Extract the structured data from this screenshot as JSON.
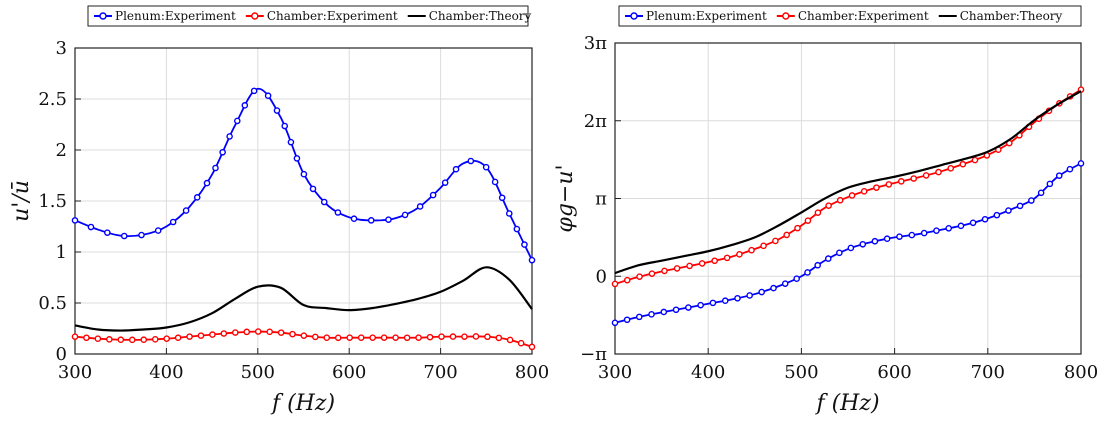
{
  "chart_data": [
    {
      "type": "line",
      "xlabel": "f (Hz)",
      "ylabel": "u'/ū",
      "xlim": [
        300,
        800
      ],
      "ylim": [
        0,
        3
      ],
      "xticks": [
        "300",
        "400",
        "500",
        "600",
        "700",
        "800"
      ],
      "yticks": [
        "0",
        "0.5",
        "1",
        "1.5",
        "2",
        "2.5",
        "3"
      ],
      "grid": true,
      "legend_position": "top (above plot)",
      "x": [
        300,
        325,
        350,
        375,
        400,
        425,
        450,
        475,
        500,
        525,
        550,
        575,
        600,
        625,
        650,
        675,
        700,
        725,
        750,
        775,
        800
      ],
      "series": [
        {
          "name": "Plenum:Experiment",
          "color": "#0000ff",
          "marker": "circle",
          "values": [
            1.31,
            1.22,
            1.16,
            1.17,
            1.25,
            1.44,
            1.76,
            2.24,
            2.6,
            2.32,
            1.77,
            1.47,
            1.34,
            1.31,
            1.33,
            1.43,
            1.63,
            1.87,
            1.83,
            1.38,
            0.92
          ]
        },
        {
          "name": "Chamber:Experiment",
          "color": "#ff0000",
          "marker": "circle",
          "values": [
            0.17,
            0.15,
            0.14,
            0.14,
            0.15,
            0.17,
            0.19,
            0.21,
            0.22,
            0.21,
            0.18,
            0.16,
            0.16,
            0.16,
            0.16,
            0.16,
            0.17,
            0.17,
            0.17,
            0.14,
            0.07
          ]
        },
        {
          "name": "Chamber:Theory",
          "color": "#000000",
          "marker": "none",
          "values": [
            0.28,
            0.24,
            0.23,
            0.24,
            0.26,
            0.31,
            0.4,
            0.54,
            0.66,
            0.65,
            0.48,
            0.45,
            0.43,
            0.45,
            0.49,
            0.54,
            0.61,
            0.72,
            0.85,
            0.73,
            0.44
          ]
        }
      ]
    },
    {
      "type": "line",
      "xlabel": "f (Hz)",
      "ylabel": "φg−u'",
      "xlim": [
        300,
        800
      ],
      "ylim": [
        -3.1416,
        9.4248
      ],
      "xticks": [
        "300",
        "400",
        "500",
        "600",
        "700",
        "800"
      ],
      "yticks": [
        "−π",
        "0",
        "π",
        "2π",
        "3π"
      ],
      "grid": true,
      "legend_position": "top (above plot)",
      "x": [
        300,
        325,
        350,
        375,
        400,
        425,
        450,
        475,
        500,
        525,
        550,
        575,
        600,
        625,
        650,
        675,
        700,
        725,
        750,
        775,
        800
      ],
      "series": [
        {
          "name": "Plenum:Experiment",
          "color": "#0000ff",
          "marker": "circle",
          "values": [
            -1.88,
            -1.65,
            -1.46,
            -1.29,
            -1.11,
            -0.94,
            -0.72,
            -0.41,
            0.0,
            0.63,
            1.1,
            1.38,
            1.57,
            1.7,
            1.88,
            2.07,
            2.34,
            2.7,
            3.14,
            4.02,
            4.56
          ]
        },
        {
          "name": "Chamber:Experiment",
          "color": "#ff0000",
          "marker": "circle",
          "values": [
            -0.31,
            -0.03,
            0.19,
            0.38,
            0.57,
            0.79,
            1.1,
            1.48,
            2.05,
            2.76,
            3.2,
            3.52,
            3.77,
            3.99,
            4.24,
            4.55,
            4.9,
            5.43,
            6.22,
            6.94,
            7.54
          ]
        },
        {
          "name": "Chamber:Theory",
          "color": "#000000",
          "marker": "none",
          "values": [
            0.13,
            0.44,
            0.63,
            0.82,
            1.01,
            1.26,
            1.57,
            2.04,
            2.58,
            3.14,
            3.58,
            3.83,
            4.02,
            4.24,
            4.49,
            4.74,
            5.03,
            5.56,
            6.31,
            6.94,
            7.48
          ]
        }
      ]
    }
  ]
}
